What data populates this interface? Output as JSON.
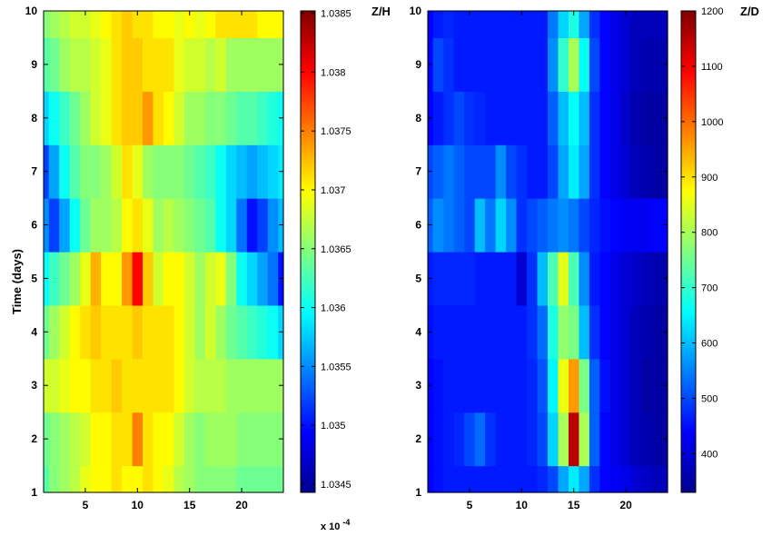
{
  "chart_data": [
    {
      "type": "heatmap",
      "title": "",
      "xlabel": "",
      "ylabel": "Time (days)",
      "xlim": [
        1,
        24
      ],
      "ylim": [
        1,
        10
      ],
      "x_ticks": [
        "5",
        "10",
        "15",
        "20"
      ],
      "y_ticks": [
        "1",
        "2",
        "3",
        "4",
        "5",
        "6",
        "7",
        "8",
        "9",
        "10"
      ],
      "colorbar": {
        "title": "Z/H",
        "range": [
          1.03443,
          1.03852
        ],
        "ticks": [
          "1.0345",
          "1.035",
          "1.0355",
          "1.036",
          "1.0365",
          "1.037",
          "1.0375",
          "1.038",
          "1.0385"
        ],
        "multiplier": "x 10",
        "multiplier_exp": "-4"
      },
      "x": [
        1,
        2,
        3,
        4,
        5,
        6,
        7,
        8,
        9,
        10,
        11,
        12,
        13,
        14,
        15,
        16,
        17,
        18,
        19,
        20,
        21,
        22,
        23,
        24
      ],
      "y": [
        1,
        2,
        3,
        4,
        5,
        6,
        7,
        8,
        9,
        10
      ],
      "z": [
        [
          1.0363,
          1.0365,
          1.0366,
          1.0367,
          1.0369,
          1.037,
          1.037,
          1.0371,
          1.037,
          1.037,
          1.0371,
          1.037,
          1.0369,
          1.0367,
          1.0366,
          1.0365,
          1.0365,
          1.0365,
          1.0365,
          1.0364,
          1.0364,
          1.0364,
          1.0364,
          1.0364
        ],
        [
          1.0364,
          1.0365,
          1.0366,
          1.0367,
          1.0368,
          1.037,
          1.037,
          1.0371,
          1.0371,
          1.0375,
          1.0371,
          1.037,
          1.037,
          1.0368,
          1.0366,
          1.0365,
          1.0366,
          1.0366,
          1.0366,
          1.0365,
          1.0365,
          1.0365,
          1.0365,
          1.0365
        ],
        [
          1.0368,
          1.0368,
          1.0369,
          1.037,
          1.037,
          1.0371,
          1.0371,
          1.0372,
          1.0371,
          1.0371,
          1.0371,
          1.0371,
          1.0371,
          1.037,
          1.0368,
          1.0367,
          1.0367,
          1.0367,
          1.0366,
          1.0366,
          1.0366,
          1.0366,
          1.0366,
          1.0366
        ],
        [
          1.0364,
          1.0366,
          1.0368,
          1.037,
          1.0371,
          1.0372,
          1.0371,
          1.0371,
          1.0371,
          1.0372,
          1.0371,
          1.0371,
          1.0371,
          1.037,
          1.0368,
          1.0366,
          1.0368,
          1.0366,
          1.0364,
          1.0363,
          1.0362,
          1.0361,
          1.036,
          1.0358
        ],
        [
          1.036,
          1.0362,
          1.0364,
          1.0366,
          1.0369,
          1.0373,
          1.037,
          1.037,
          1.0374,
          1.038,
          1.0372,
          1.0368,
          1.037,
          1.037,
          1.0368,
          1.0366,
          1.0368,
          1.0369,
          1.0365,
          1.036,
          1.0358,
          1.0356,
          1.0354,
          1.035
        ],
        [
          1.0355,
          1.0352,
          1.0356,
          1.036,
          1.0364,
          1.0366,
          1.0366,
          1.0367,
          1.037,
          1.0371,
          1.0369,
          1.0366,
          1.0367,
          1.0366,
          1.0365,
          1.0364,
          1.0363,
          1.036,
          1.0358,
          1.0354,
          1.035,
          1.0352,
          1.0355,
          1.0357
        ],
        [
          1.0352,
          1.0356,
          1.036,
          1.0363,
          1.0365,
          1.0365,
          1.0366,
          1.0368,
          1.0371,
          1.0369,
          1.0366,
          1.0365,
          1.0365,
          1.0365,
          1.0364,
          1.0363,
          1.0362,
          1.036,
          1.0358,
          1.0357,
          1.0356,
          1.0357,
          1.0358,
          1.0359
        ],
        [
          1.0358,
          1.036,
          1.0362,
          1.0364,
          1.0366,
          1.0368,
          1.0369,
          1.0371,
          1.0372,
          1.0372,
          1.0374,
          1.0371,
          1.037,
          1.0368,
          1.0366,
          1.0366,
          1.0365,
          1.0365,
          1.0364,
          1.0363,
          1.0363,
          1.0362,
          1.0361,
          1.036
        ],
        [
          1.0363,
          1.0364,
          1.0366,
          1.0367,
          1.0367,
          1.0368,
          1.0369,
          1.0371,
          1.0372,
          1.0372,
          1.0371,
          1.0371,
          1.0371,
          1.0369,
          1.0368,
          1.0368,
          1.0367,
          1.0368,
          1.0366,
          1.0366,
          1.0366,
          1.0366,
          1.0366,
          1.0366
        ],
        [
          1.0365,
          1.0366,
          1.0367,
          1.0368,
          1.0368,
          1.0369,
          1.037,
          1.0371,
          1.0372,
          1.0371,
          1.0371,
          1.037,
          1.037,
          1.0369,
          1.037,
          1.0369,
          1.037,
          1.0371,
          1.0371,
          1.0371,
          1.0371,
          1.037,
          1.037,
          1.037
        ]
      ]
    },
    {
      "type": "heatmap",
      "title": "",
      "xlabel": "",
      "ylabel": "",
      "xlim": [
        1,
        24
      ],
      "ylim": [
        1,
        10
      ],
      "x_ticks": [
        "5",
        "10",
        "15",
        "20"
      ],
      "y_ticks": [
        "1",
        "2",
        "3",
        "4",
        "5",
        "6",
        "7",
        "8",
        "9",
        "10"
      ],
      "colorbar": {
        "title": "Z/D",
        "range": [
          330,
          1200
        ],
        "ticks": [
          "400",
          "500",
          "600",
          "700",
          "800",
          "900",
          "1000",
          "1100",
          "1200"
        ]
      },
      "x": [
        1,
        2,
        3,
        4,
        5,
        6,
        7,
        8,
        9,
        10,
        11,
        12,
        13,
        14,
        15,
        16,
        17,
        18,
        19,
        20,
        21,
        22,
        23,
        24
      ],
      "y": [
        1,
        2,
        3,
        4,
        5,
        6,
        7,
        8,
        9,
        10
      ],
      "z": [
        [
          440,
          450,
          460,
          460,
          460,
          460,
          460,
          460,
          460,
          460,
          460,
          470,
          500,
          580,
          640,
          580,
          480,
          440,
          430,
          420,
          400,
          390,
          380,
          380
        ],
        [
          440,
          450,
          460,
          470,
          500,
          530,
          480,
          460,
          460,
          460,
          470,
          500,
          620,
          800,
          1150,
          800,
          520,
          440,
          420,
          400,
          380,
          370,
          360,
          360
        ],
        [
          440,
          450,
          460,
          460,
          460,
          460,
          460,
          460,
          460,
          460,
          470,
          510,
          650,
          860,
          960,
          760,
          520,
          450,
          420,
          400,
          380,
          360,
          360,
          360
        ],
        [
          450,
          460,
          460,
          460,
          460,
          460,
          460,
          460,
          460,
          460,
          480,
          530,
          680,
          780,
          760,
          600,
          480,
          440,
          420,
          400,
          380,
          370,
          360,
          360
        ],
        [
          460,
          470,
          470,
          470,
          470,
          460,
          460,
          460,
          460,
          400,
          480,
          600,
          720,
          850,
          720,
          560,
          460,
          440,
          420,
          400,
          390,
          380,
          370,
          370
        ],
        [
          520,
          560,
          540,
          520,
          500,
          600,
          540,
          620,
          560,
          480,
          500,
          520,
          540,
          560,
          540,
          500,
          470,
          450,
          440,
          430,
          430,
          430,
          440,
          440
        ],
        [
          500,
          520,
          540,
          520,
          500,
          500,
          500,
          560,
          500,
          480,
          460,
          460,
          500,
          580,
          640,
          580,
          480,
          440,
          420,
          400,
          380,
          370,
          360,
          360
        ],
        [
          440,
          460,
          480,
          500,
          480,
          470,
          460,
          460,
          460,
          460,
          460,
          460,
          520,
          600,
          660,
          600,
          480,
          440,
          420,
          390,
          370,
          360,
          360,
          360
        ],
        [
          440,
          500,
          480,
          460,
          460,
          460,
          460,
          460,
          460,
          460,
          460,
          460,
          560,
          700,
          800,
          660,
          500,
          440,
          420,
          400,
          380,
          370,
          370,
          370
        ],
        [
          440,
          460,
          470,
          460,
          460,
          460,
          460,
          460,
          460,
          460,
          460,
          460,
          540,
          620,
          680,
          580,
          480,
          440,
          420,
          400,
          380,
          380,
          380,
          380
        ]
      ]
    }
  ]
}
